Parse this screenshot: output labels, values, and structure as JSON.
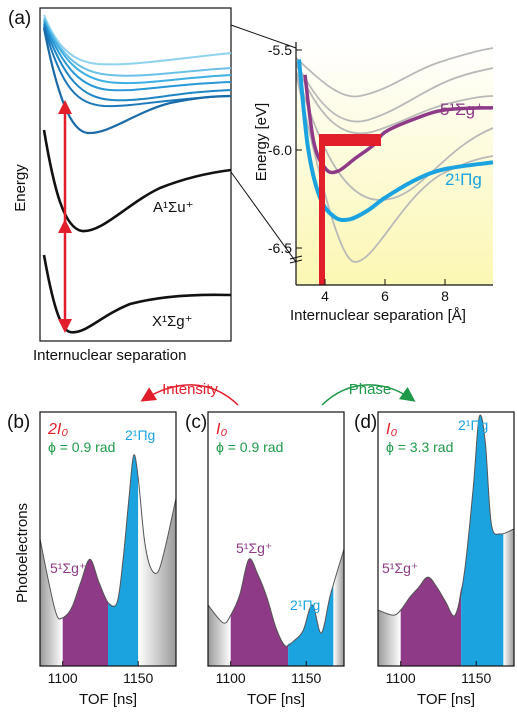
{
  "panels": {
    "a": {
      "label": "(a)",
      "ylabel": "Energy",
      "xlabel": "Internuclear separation",
      "state_lower": "X¹Σg⁺",
      "state_mid": "A¹Σu⁺"
    },
    "inset": {
      "ylabel": "Energy [eV]",
      "xlabel": "Internuclear separation [Å]",
      "y_ticks": [
        "-5.5",
        "-6.0",
        "-6.5"
      ],
      "x_ticks": [
        "4",
        "6",
        "8"
      ],
      "state_sigma": "5¹Σg⁺",
      "state_pi": "2¹Πg"
    },
    "b": {
      "label": "(b)",
      "intensity": "2I₀",
      "phase": "ϕ = 0.9 rad",
      "left_peak": "5¹Σg⁺",
      "right_peak": "2¹Πg"
    },
    "c": {
      "label": "(c)",
      "intensity": "I₀",
      "phase": "ϕ = 0.9 rad",
      "left_peak": "5¹Σg⁺",
      "right_peak": "2¹Πg"
    },
    "d": {
      "label": "(d)",
      "intensity": "I₀",
      "phase": "ϕ = 3.3 rad",
      "left_peak": "5¹Σg⁺",
      "right_peak": "2¹Πg"
    }
  },
  "arrows": {
    "left": "Intensity",
    "right": "Phase"
  },
  "tof": {
    "xlabel": "TOF [ns]",
    "ticks": [
      "1100",
      "1150"
    ]
  },
  "ylabel_bottom": "Photoelectrons",
  "colors": {
    "red": "#e31e2b",
    "green": "#1f9a4a",
    "purple": "#8e3a86",
    "cyan": "#1ba3e0",
    "blue_dark": "#1c6aa8",
    "gray": "#b5b5b5",
    "yellow": "#fbf7b9"
  },
  "chart_data": [
    {
      "type": "line",
      "panel": "inset",
      "xlabel": "Internuclear separation [Å]",
      "ylabel": "Energy [eV]",
      "xlim": [
        3.0,
        9.6
      ],
      "ylim": [
        -6.58,
        -5.47
      ],
      "series": [
        {
          "name": "5¹Σg⁺",
          "x": [
            3.3,
            3.6,
            4.0,
            4.4,
            5.0,
            5.6,
            6.0,
            7.0,
            8.0,
            9.6
          ],
          "y": [
            -5.62,
            -5.93,
            -6.05,
            -6.06,
            -6.0,
            -5.94,
            -5.88,
            -5.82,
            -5.78,
            -5.77
          ]
        },
        {
          "name": "2¹Πg",
          "x": [
            3.1,
            3.4,
            3.8,
            4.3,
            4.8,
            5.4,
            6.0,
            7.0,
            8.0,
            9.6
          ],
          "y": [
            -5.55,
            -5.95,
            -6.18,
            -6.27,
            -6.28,
            -6.24,
            -6.18,
            -6.1,
            -6.05,
            -6.02
          ]
        }
      ]
    },
    {
      "type": "area",
      "panel": "b",
      "xlabel": "TOF [ns]",
      "xlim": [
        1085,
        1175
      ],
      "x": [
        1085,
        1095,
        1100,
        1106,
        1112,
        1118,
        1124,
        1130,
        1136,
        1140,
        1144,
        1147,
        1150,
        1154,
        1158,
        1163,
        1168,
        1175
      ],
      "y": [
        0.5,
        0.22,
        0.19,
        0.23,
        0.33,
        0.42,
        0.33,
        0.25,
        0.25,
        0.42,
        0.67,
        0.83,
        0.74,
        0.5,
        0.39,
        0.37,
        0.47,
        0.66
      ],
      "ylim": [
        0,
        1
      ]
    },
    {
      "type": "area",
      "panel": "c",
      "xlabel": "TOF [ns]",
      "xlim": [
        1085,
        1175
      ],
      "x": [
        1085,
        1095,
        1100,
        1106,
        1112,
        1118,
        1124,
        1130,
        1136,
        1142,
        1148,
        1154,
        1160,
        1166,
        1175
      ],
      "y": [
        0.24,
        0.17,
        0.2,
        0.28,
        0.42,
        0.36,
        0.27,
        0.15,
        0.08,
        0.1,
        0.14,
        0.24,
        0.13,
        0.28,
        0.46
      ],
      "ylim": [
        0,
        1
      ]
    },
    {
      "type": "area",
      "panel": "d",
      "xlabel": "TOF [ns]",
      "xlim": [
        1085,
        1175
      ],
      "x": [
        1085,
        1095,
        1100,
        1106,
        1112,
        1118,
        1124,
        1130,
        1136,
        1142,
        1148,
        1152,
        1156,
        1160,
        1166,
        1175
      ],
      "y": [
        0.22,
        0.2,
        0.22,
        0.27,
        0.31,
        0.35,
        0.31,
        0.25,
        0.2,
        0.36,
        0.7,
        0.98,
        0.88,
        0.56,
        0.52,
        0.54
      ],
      "ylim": [
        0,
        1
      ]
    }
  ]
}
